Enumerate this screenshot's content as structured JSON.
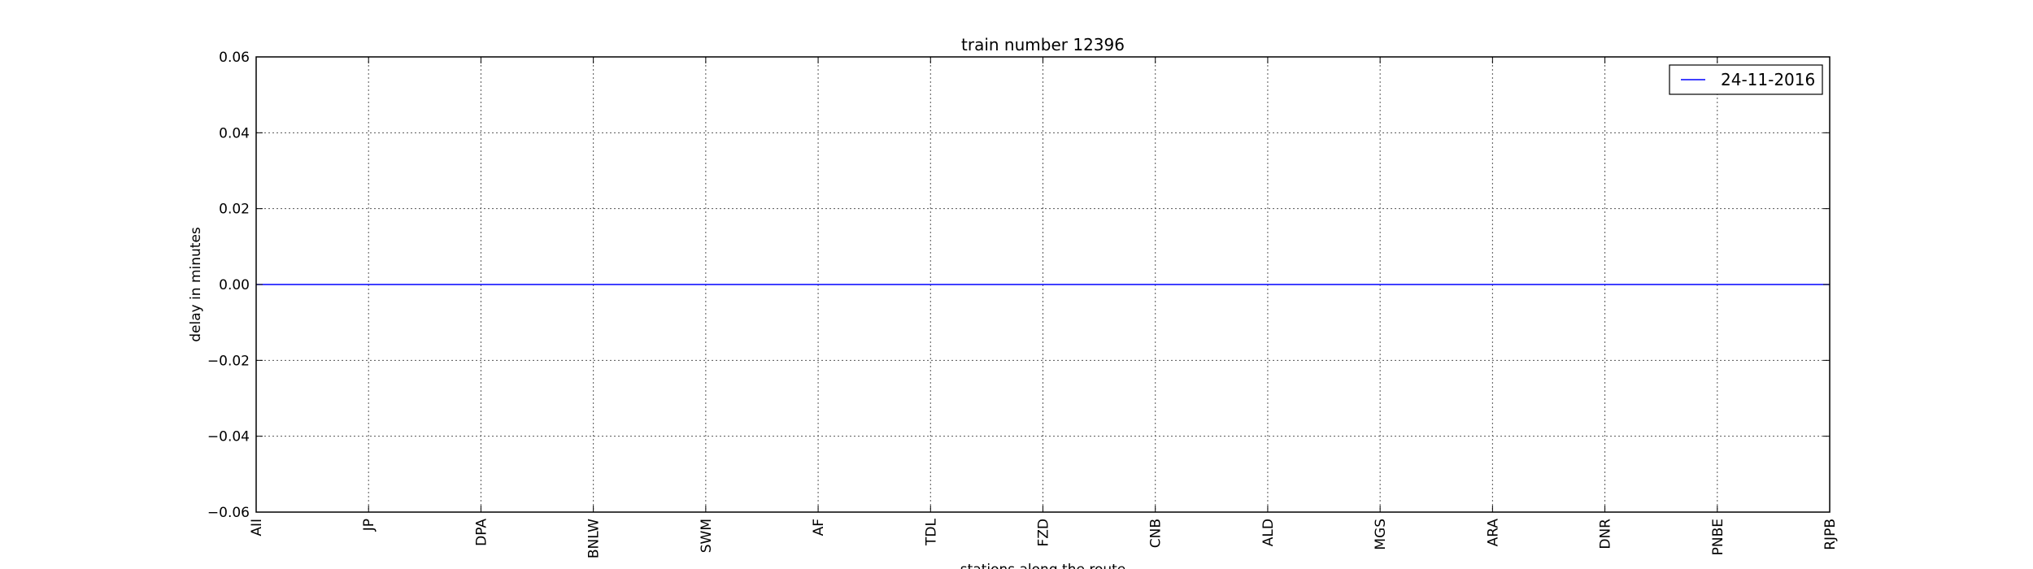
{
  "chart_data": {
    "type": "line",
    "title": "train number 12396",
    "xlabel": "stations along the route",
    "ylabel": "delay in minutes",
    "categories": [
      "AII",
      "JP",
      "DPA",
      "BNLW",
      "SWM",
      "AF",
      "TDL",
      "FZD",
      "CNB",
      "ALD",
      "MGS",
      "ARA",
      "DNR",
      "PNBE",
      "RJPB"
    ],
    "series": [
      {
        "name": "24-11-2016",
        "values": [
          0,
          0,
          0,
          0,
          0,
          0,
          0,
          0,
          0,
          0,
          0,
          0,
          0,
          0,
          0
        ],
        "color": "#0000ff"
      }
    ],
    "ylim": [
      -0.06,
      0.06
    ],
    "yticks": [
      0.06,
      0.04,
      0.02,
      0.0,
      -0.02,
      -0.04,
      -0.06
    ],
    "ytick_labels": [
      "0.06",
      "0.04",
      "0.02",
      "0.00",
      "−0.02",
      "−0.04",
      "−0.06"
    ],
    "grid": true,
    "legend_position": "top-right"
  }
}
